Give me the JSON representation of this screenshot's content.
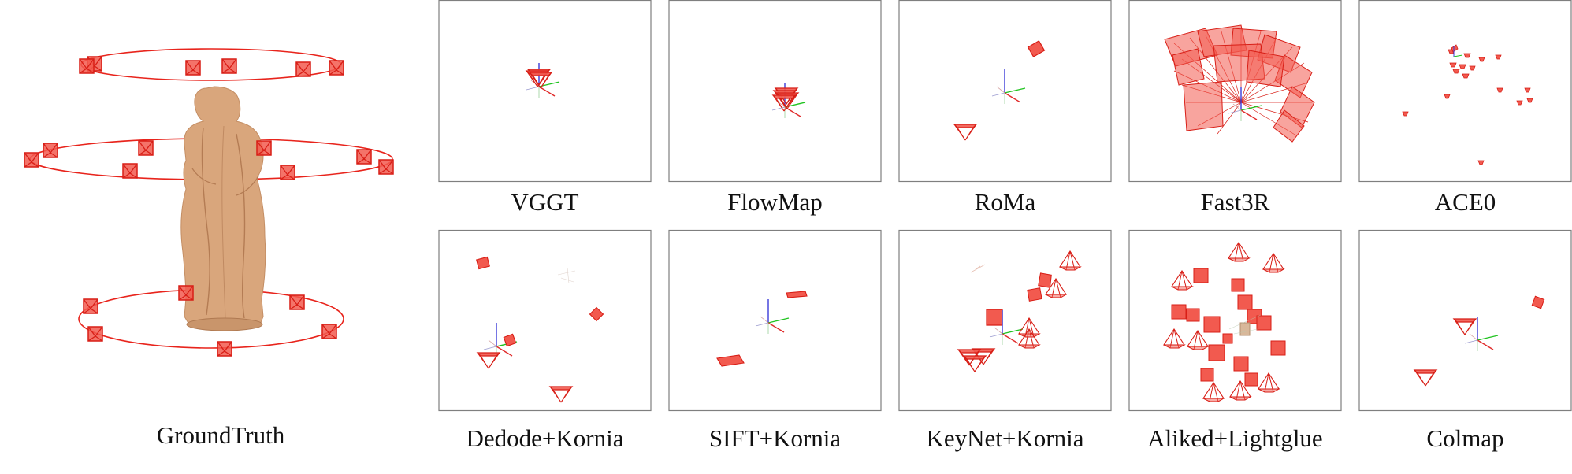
{
  "figure": {
    "ground_truth_label": "GroundTruth",
    "panels": [
      {
        "id": "vggt",
        "label": "VGGT"
      },
      {
        "id": "flowmap",
        "label": "FlowMap"
      },
      {
        "id": "roma",
        "label": "RoMa"
      },
      {
        "id": "fast3r",
        "label": "Fast3R"
      },
      {
        "id": "ace0",
        "label": "ACE0"
      },
      {
        "id": "dedode",
        "label": "Dedode+Kornia"
      },
      {
        "id": "sift",
        "label": "SIFT+Kornia"
      },
      {
        "id": "keynet",
        "label": "KeyNet+Kornia"
      },
      {
        "id": "aliked",
        "label": "Aliked+Lightglue"
      },
      {
        "id": "colmap",
        "label": "Colmap"
      }
    ]
  },
  "colors": {
    "camera": "#e8241c",
    "camera_fill": "#f25a4f",
    "panel_border": "#7f7f7f",
    "axis_x": "#e02a2a",
    "axis_y": "#21c421",
    "axis_z": "#3a3ad8",
    "statue": "#d9a67c"
  }
}
